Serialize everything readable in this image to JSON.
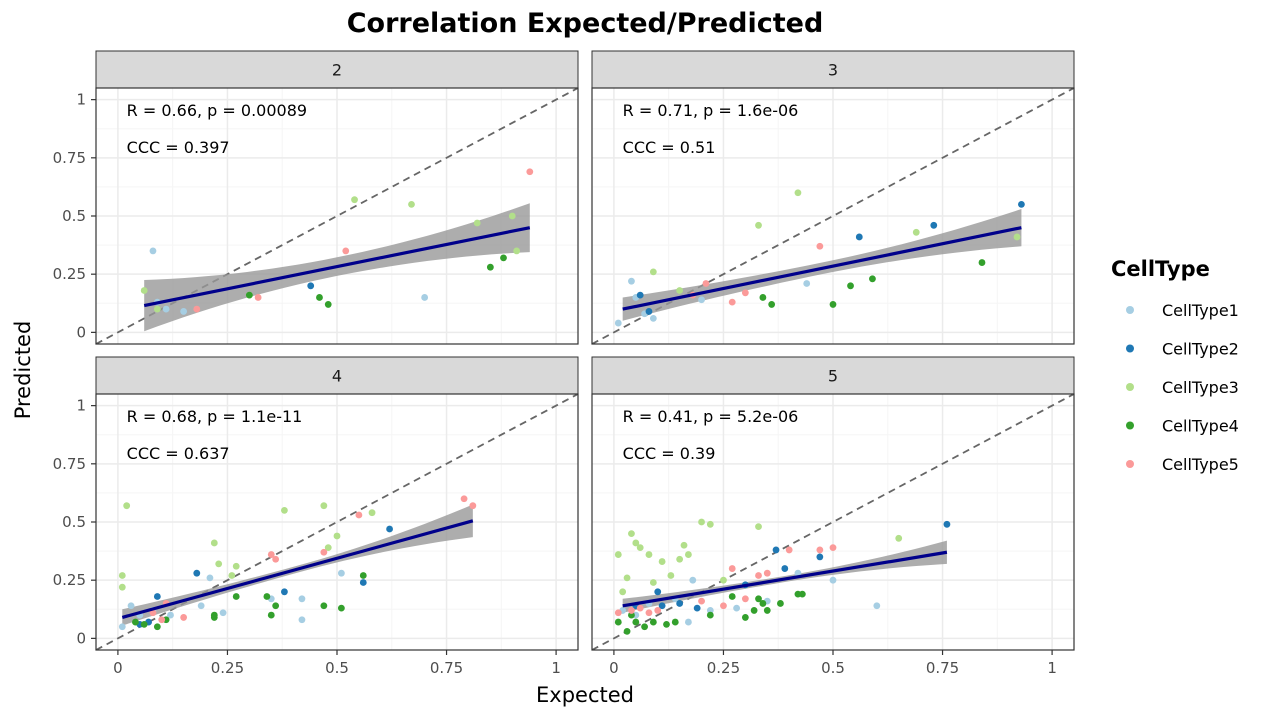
{
  "chart_data": {
    "type": "scatter",
    "title": "Correlation Expected/Predicted",
    "xlabel": "Expected",
    "ylabel": "Predicted",
    "xlim": [
      -0.05,
      1.05
    ],
    "ylim": [
      -0.05,
      1.05
    ],
    "x_ticks": [
      0,
      0.25,
      0.5,
      0.75,
      1
    ],
    "x_tick_labels": [
      "0",
      "0.25",
      "0.5",
      "0.75",
      "1"
    ],
    "y_ticks": [
      0,
      0.25,
      0.5,
      0.75,
      1
    ],
    "y_tick_labels": [
      "0",
      "0.25",
      "0.5",
      "0.75",
      "1"
    ],
    "grid": true,
    "identity_line": true,
    "legend": {
      "title": "CellType",
      "position": "right",
      "entries": [
        {
          "name": "CellType1",
          "color": "#a6cee3"
        },
        {
          "name": "CellType2",
          "color": "#1f78b4"
        },
        {
          "name": "CellType3",
          "color": "#b2df8a"
        },
        {
          "name": "CellType4",
          "color": "#33a02c"
        },
        {
          "name": "CellType5",
          "color": "#fb9a99"
        }
      ]
    },
    "facets": [
      {
        "label": "2",
        "annotation_r": "R = 0.66, p = 0.00089",
        "annotation_ccc": "CCC = 0.397",
        "fit": {
          "x0": 0.06,
          "y0": 0.115,
          "x1": 0.94,
          "y1": 0.45,
          "band_left": 0.11,
          "band_mid": 0.04,
          "band_right": 0.105
        },
        "points": [
          {
            "x": 0.08,
            "y": 0.35,
            "t": 0
          },
          {
            "x": 0.7,
            "y": 0.15,
            "t": 0
          },
          {
            "x": 0.09,
            "y": 0.13,
            "t": 0
          },
          {
            "x": 0.15,
            "y": 0.09,
            "t": 0
          },
          {
            "x": 0.11,
            "y": 0.1,
            "t": 0
          },
          {
            "x": 0.44,
            "y": 0.2,
            "t": 1
          },
          {
            "x": 0.06,
            "y": 0.18,
            "t": 2
          },
          {
            "x": 0.54,
            "y": 0.57,
            "t": 2
          },
          {
            "x": 0.67,
            "y": 0.55,
            "t": 2
          },
          {
            "x": 0.82,
            "y": 0.47,
            "t": 2
          },
          {
            "x": 0.9,
            "y": 0.5,
            "t": 2
          },
          {
            "x": 0.91,
            "y": 0.35,
            "t": 2
          },
          {
            "x": 0.09,
            "y": 0.1,
            "t": 2
          },
          {
            "x": 0.3,
            "y": 0.16,
            "t": 2
          },
          {
            "x": 0.46,
            "y": 0.15,
            "t": 3
          },
          {
            "x": 0.48,
            "y": 0.12,
            "t": 3
          },
          {
            "x": 0.85,
            "y": 0.28,
            "t": 3
          },
          {
            "x": 0.88,
            "y": 0.32,
            "t": 3
          },
          {
            "x": 0.3,
            "y": 0.16,
            "t": 3
          },
          {
            "x": 0.94,
            "y": 0.69,
            "t": 4
          },
          {
            "x": 0.52,
            "y": 0.35,
            "t": 4
          },
          {
            "x": 0.18,
            "y": 0.1,
            "t": 4
          },
          {
            "x": 0.32,
            "y": 0.15,
            "t": 4
          }
        ]
      },
      {
        "label": "3",
        "annotation_r": "R = 0.71, p = 1.6e-06",
        "annotation_ccc": "CCC = 0.51",
        "fit": {
          "x0": 0.02,
          "y0": 0.1,
          "x1": 0.93,
          "y1": 0.45,
          "band_left": 0.05,
          "band_mid": 0.025,
          "band_right": 0.08
        },
        "points": [
          {
            "x": 0.04,
            "y": 0.22,
            "t": 0
          },
          {
            "x": 0.05,
            "y": 0.15,
            "t": 0
          },
          {
            "x": 0.09,
            "y": 0.06,
            "t": 0
          },
          {
            "x": 0.01,
            "y": 0.04,
            "t": 0
          },
          {
            "x": 0.2,
            "y": 0.14,
            "t": 0
          },
          {
            "x": 0.44,
            "y": 0.21,
            "t": 0
          },
          {
            "x": 0.07,
            "y": 0.08,
            "t": 0
          },
          {
            "x": 0.56,
            "y": 0.41,
            "t": 1
          },
          {
            "x": 0.73,
            "y": 0.46,
            "t": 1
          },
          {
            "x": 0.93,
            "y": 0.55,
            "t": 1
          },
          {
            "x": 0.06,
            "y": 0.16,
            "t": 1
          },
          {
            "x": 0.08,
            "y": 0.09,
            "t": 1
          },
          {
            "x": 0.42,
            "y": 0.6,
            "t": 2
          },
          {
            "x": 0.33,
            "y": 0.46,
            "t": 2
          },
          {
            "x": 0.09,
            "y": 0.26,
            "t": 2
          },
          {
            "x": 0.69,
            "y": 0.43,
            "t": 2
          },
          {
            "x": 0.92,
            "y": 0.41,
            "t": 2
          },
          {
            "x": 0.15,
            "y": 0.18,
            "t": 2
          },
          {
            "x": 0.34,
            "y": 0.15,
            "t": 3
          },
          {
            "x": 0.36,
            "y": 0.12,
            "t": 3
          },
          {
            "x": 0.5,
            "y": 0.12,
            "t": 3
          },
          {
            "x": 0.54,
            "y": 0.2,
            "t": 3
          },
          {
            "x": 0.59,
            "y": 0.23,
            "t": 3
          },
          {
            "x": 0.84,
            "y": 0.3,
            "t": 3
          },
          {
            "x": 0.47,
            "y": 0.37,
            "t": 4
          },
          {
            "x": 0.3,
            "y": 0.17,
            "t": 4
          },
          {
            "x": 0.27,
            "y": 0.13,
            "t": 4
          },
          {
            "x": 0.21,
            "y": 0.21,
            "t": 4
          },
          {
            "x": 0.18,
            "y": 0.16,
            "t": 4
          }
        ]
      },
      {
        "label": "4",
        "annotation_r": "R = 0.68, p = 1.1e-11",
        "annotation_ccc": "CCC = 0.637",
        "fit": {
          "x0": 0.01,
          "y0": 0.09,
          "x1": 0.81,
          "y1": 0.505,
          "band_left": 0.035,
          "band_mid": 0.015,
          "band_right": 0.07
        },
        "points": [
          {
            "x": 0.01,
            "y": 0.05,
            "t": 0
          },
          {
            "x": 0.03,
            "y": 0.14,
            "t": 0
          },
          {
            "x": 0.05,
            "y": 0.1,
            "t": 0
          },
          {
            "x": 0.08,
            "y": 0.12,
            "t": 0
          },
          {
            "x": 0.19,
            "y": 0.14,
            "t": 0
          },
          {
            "x": 0.21,
            "y": 0.26,
            "t": 0
          },
          {
            "x": 0.24,
            "y": 0.11,
            "t": 0
          },
          {
            "x": 0.42,
            "y": 0.08,
            "t": 0
          },
          {
            "x": 0.42,
            "y": 0.17,
            "t": 0
          },
          {
            "x": 0.51,
            "y": 0.28,
            "t": 0
          },
          {
            "x": 0.35,
            "y": 0.17,
            "t": 0
          },
          {
            "x": 0.12,
            "y": 0.1,
            "t": 0
          },
          {
            "x": 0.09,
            "y": 0.18,
            "t": 1
          },
          {
            "x": 0.18,
            "y": 0.28,
            "t": 1
          },
          {
            "x": 0.38,
            "y": 0.2,
            "t": 1
          },
          {
            "x": 0.56,
            "y": 0.24,
            "t": 1
          },
          {
            "x": 0.62,
            "y": 0.47,
            "t": 1
          },
          {
            "x": 0.05,
            "y": 0.06,
            "t": 1
          },
          {
            "x": 0.07,
            "y": 0.07,
            "t": 1
          },
          {
            "x": 0.02,
            "y": 0.57,
            "t": 2
          },
          {
            "x": 0.01,
            "y": 0.27,
            "t": 2
          },
          {
            "x": 0.01,
            "y": 0.22,
            "t": 2
          },
          {
            "x": 0.22,
            "y": 0.41,
            "t": 2
          },
          {
            "x": 0.23,
            "y": 0.32,
            "t": 2
          },
          {
            "x": 0.26,
            "y": 0.27,
            "t": 2
          },
          {
            "x": 0.27,
            "y": 0.31,
            "t": 2
          },
          {
            "x": 0.38,
            "y": 0.55,
            "t": 2
          },
          {
            "x": 0.47,
            "y": 0.57,
            "t": 2
          },
          {
            "x": 0.5,
            "y": 0.44,
            "t": 2
          },
          {
            "x": 0.58,
            "y": 0.54,
            "t": 2
          },
          {
            "x": 0.48,
            "y": 0.39,
            "t": 2
          },
          {
            "x": 0.06,
            "y": 0.06,
            "t": 3
          },
          {
            "x": 0.09,
            "y": 0.05,
            "t": 3
          },
          {
            "x": 0.11,
            "y": 0.08,
            "t": 3
          },
          {
            "x": 0.22,
            "y": 0.09,
            "t": 3
          },
          {
            "x": 0.22,
            "y": 0.1,
            "t": 3
          },
          {
            "x": 0.27,
            "y": 0.18,
            "t": 3
          },
          {
            "x": 0.34,
            "y": 0.18,
            "t": 3
          },
          {
            "x": 0.35,
            "y": 0.1,
            "t": 3
          },
          {
            "x": 0.36,
            "y": 0.14,
            "t": 3
          },
          {
            "x": 0.47,
            "y": 0.14,
            "t": 3
          },
          {
            "x": 0.51,
            "y": 0.13,
            "t": 3
          },
          {
            "x": 0.56,
            "y": 0.27,
            "t": 3
          },
          {
            "x": 0.04,
            "y": 0.07,
            "t": 3
          },
          {
            "x": 0.79,
            "y": 0.6,
            "t": 4
          },
          {
            "x": 0.81,
            "y": 0.57,
            "t": 4
          },
          {
            "x": 0.55,
            "y": 0.53,
            "t": 4
          },
          {
            "x": 0.47,
            "y": 0.37,
            "t": 4
          },
          {
            "x": 0.35,
            "y": 0.36,
            "t": 4
          },
          {
            "x": 0.36,
            "y": 0.34,
            "t": 4
          },
          {
            "x": 0.15,
            "y": 0.09,
            "t": 4
          },
          {
            "x": 0.1,
            "y": 0.08,
            "t": 4
          },
          {
            "x": 0.11,
            "y": 0.15,
            "t": 4
          },
          {
            "x": 0.08,
            "y": 0.11,
            "t": 4
          }
        ]
      },
      {
        "label": "5",
        "annotation_r": "R = 0.41, p = 5.2e-06",
        "annotation_ccc": "CCC = 0.39",
        "fit": {
          "x0": 0.02,
          "y0": 0.14,
          "x1": 0.76,
          "y1": 0.37,
          "band_left": 0.03,
          "band_mid": 0.013,
          "band_right": 0.05
        },
        "points": [
          {
            "x": 0.02,
            "y": 0.12,
            "t": 0
          },
          {
            "x": 0.05,
            "y": 0.1,
            "t": 0
          },
          {
            "x": 0.08,
            "y": 0.15,
            "t": 0
          },
          {
            "x": 0.14,
            "y": 0.17,
            "t": 0
          },
          {
            "x": 0.17,
            "y": 0.07,
            "t": 0
          },
          {
            "x": 0.18,
            "y": 0.25,
            "t": 0
          },
          {
            "x": 0.28,
            "y": 0.13,
            "t": 0
          },
          {
            "x": 0.35,
            "y": 0.16,
            "t": 0
          },
          {
            "x": 0.5,
            "y": 0.25,
            "t": 0
          },
          {
            "x": 0.6,
            "y": 0.14,
            "t": 0
          },
          {
            "x": 0.42,
            "y": 0.28,
            "t": 0
          },
          {
            "x": 0.22,
            "y": 0.12,
            "t": 0
          },
          {
            "x": 0.1,
            "y": 0.2,
            "t": 1
          },
          {
            "x": 0.15,
            "y": 0.15,
            "t": 1
          },
          {
            "x": 0.19,
            "y": 0.13,
            "t": 1
          },
          {
            "x": 0.3,
            "y": 0.23,
            "t": 1
          },
          {
            "x": 0.37,
            "y": 0.38,
            "t": 1
          },
          {
            "x": 0.39,
            "y": 0.3,
            "t": 1
          },
          {
            "x": 0.47,
            "y": 0.35,
            "t": 1
          },
          {
            "x": 0.76,
            "y": 0.49,
            "t": 1
          },
          {
            "x": 0.11,
            "y": 0.14,
            "t": 1
          },
          {
            "x": 0.05,
            "y": 0.14,
            "t": 1
          },
          {
            "x": 0.03,
            "y": 0.26,
            "t": 2
          },
          {
            "x": 0.04,
            "y": 0.45,
            "t": 2
          },
          {
            "x": 0.05,
            "y": 0.41,
            "t": 2
          },
          {
            "x": 0.06,
            "y": 0.39,
            "t": 2
          },
          {
            "x": 0.08,
            "y": 0.36,
            "t": 2
          },
          {
            "x": 0.09,
            "y": 0.24,
            "t": 2
          },
          {
            "x": 0.11,
            "y": 0.33,
            "t": 2
          },
          {
            "x": 0.13,
            "y": 0.27,
            "t": 2
          },
          {
            "x": 0.15,
            "y": 0.34,
            "t": 2
          },
          {
            "x": 0.16,
            "y": 0.4,
            "t": 2
          },
          {
            "x": 0.17,
            "y": 0.36,
            "t": 2
          },
          {
            "x": 0.2,
            "y": 0.5,
            "t": 2
          },
          {
            "x": 0.22,
            "y": 0.49,
            "t": 2
          },
          {
            "x": 0.25,
            "y": 0.25,
            "t": 2
          },
          {
            "x": 0.33,
            "y": 0.48,
            "t": 2
          },
          {
            "x": 0.65,
            "y": 0.43,
            "t": 2
          },
          {
            "x": 0.01,
            "y": 0.36,
            "t": 2
          },
          {
            "x": 0.02,
            "y": 0.2,
            "t": 2
          },
          {
            "x": 0.01,
            "y": 0.07,
            "t": 3
          },
          {
            "x": 0.03,
            "y": 0.03,
            "t": 3
          },
          {
            "x": 0.05,
            "y": 0.07,
            "t": 3
          },
          {
            "x": 0.07,
            "y": 0.05,
            "t": 3
          },
          {
            "x": 0.09,
            "y": 0.07,
            "t": 3
          },
          {
            "x": 0.12,
            "y": 0.06,
            "t": 3
          },
          {
            "x": 0.14,
            "y": 0.07,
            "t": 3
          },
          {
            "x": 0.22,
            "y": 0.1,
            "t": 3
          },
          {
            "x": 0.27,
            "y": 0.18,
            "t": 3
          },
          {
            "x": 0.3,
            "y": 0.09,
            "t": 3
          },
          {
            "x": 0.32,
            "y": 0.12,
            "t": 3
          },
          {
            "x": 0.33,
            "y": 0.17,
            "t": 3
          },
          {
            "x": 0.34,
            "y": 0.15,
            "t": 3
          },
          {
            "x": 0.35,
            "y": 0.12,
            "t": 3
          },
          {
            "x": 0.38,
            "y": 0.15,
            "t": 3
          },
          {
            "x": 0.42,
            "y": 0.19,
            "t": 3
          },
          {
            "x": 0.43,
            "y": 0.19,
            "t": 3
          },
          {
            "x": 0.04,
            "y": 0.1,
            "t": 3
          },
          {
            "x": 0.01,
            "y": 0.11,
            "t": 4
          },
          {
            "x": 0.04,
            "y": 0.12,
            "t": 4
          },
          {
            "x": 0.06,
            "y": 0.13,
            "t": 4
          },
          {
            "x": 0.08,
            "y": 0.11,
            "t": 4
          },
          {
            "x": 0.1,
            "y": 0.12,
            "t": 4
          },
          {
            "x": 0.2,
            "y": 0.16,
            "t": 4
          },
          {
            "x": 0.25,
            "y": 0.14,
            "t": 4
          },
          {
            "x": 0.27,
            "y": 0.3,
            "t": 4
          },
          {
            "x": 0.3,
            "y": 0.17,
            "t": 4
          },
          {
            "x": 0.33,
            "y": 0.27,
            "t": 4
          },
          {
            "x": 0.35,
            "y": 0.28,
            "t": 4
          },
          {
            "x": 0.4,
            "y": 0.38,
            "t": 4
          },
          {
            "x": 0.47,
            "y": 0.38,
            "t": 4
          },
          {
            "x": 0.5,
            "y": 0.39,
            "t": 4
          }
        ]
      }
    ]
  },
  "colors": {
    "strip_bg": "#d9d9d9",
    "panel_border": "#333333",
    "grid_major": "#ebebeb",
    "grid_minor": "#f5f5f5",
    "fit_line": "#00008b",
    "fit_band": "#999999",
    "identity_line": "#666666"
  }
}
